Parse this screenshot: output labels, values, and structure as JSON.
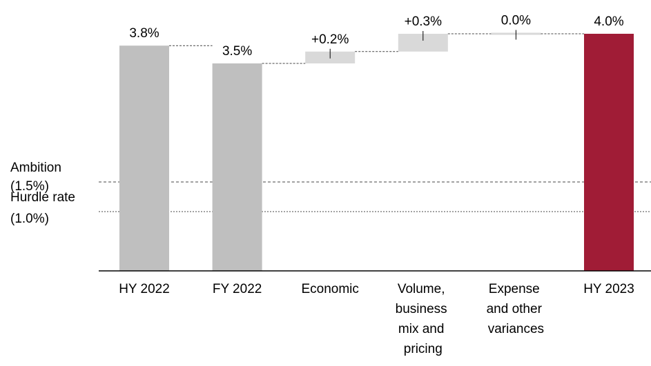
{
  "chart_data": {
    "type": "waterfall",
    "categories": [
      "HY 2022",
      "FY 2022",
      "Economic",
      "Volume, business mix and pricing",
      "Expense and other variances",
      "HY 2023"
    ],
    "values": [
      3.8,
      3.5,
      0.2,
      0.3,
      0.0,
      4.0
    ],
    "value_labels": [
      "3.8%",
      "3.5%",
      "+0.2%",
      "+0.3%",
      "0.0%",
      "4.0%"
    ],
    "measures": [
      "total",
      "total",
      "relative",
      "relative",
      "relative",
      "total"
    ],
    "colors": [
      "#bfbfbf",
      "#bfbfbf",
      "#d9d9d9",
      "#d9d9d9",
      "#d9d9d9",
      "#a01c36"
    ],
    "ylim": [
      0,
      4.5
    ],
    "reference_lines": [
      {
        "label": "Ambition",
        "value": 1.5,
        "value_label": "(1.5%)"
      },
      {
        "label": "Hurdle rate",
        "value": 1.0,
        "value_label": "(1.0%)"
      }
    ]
  }
}
